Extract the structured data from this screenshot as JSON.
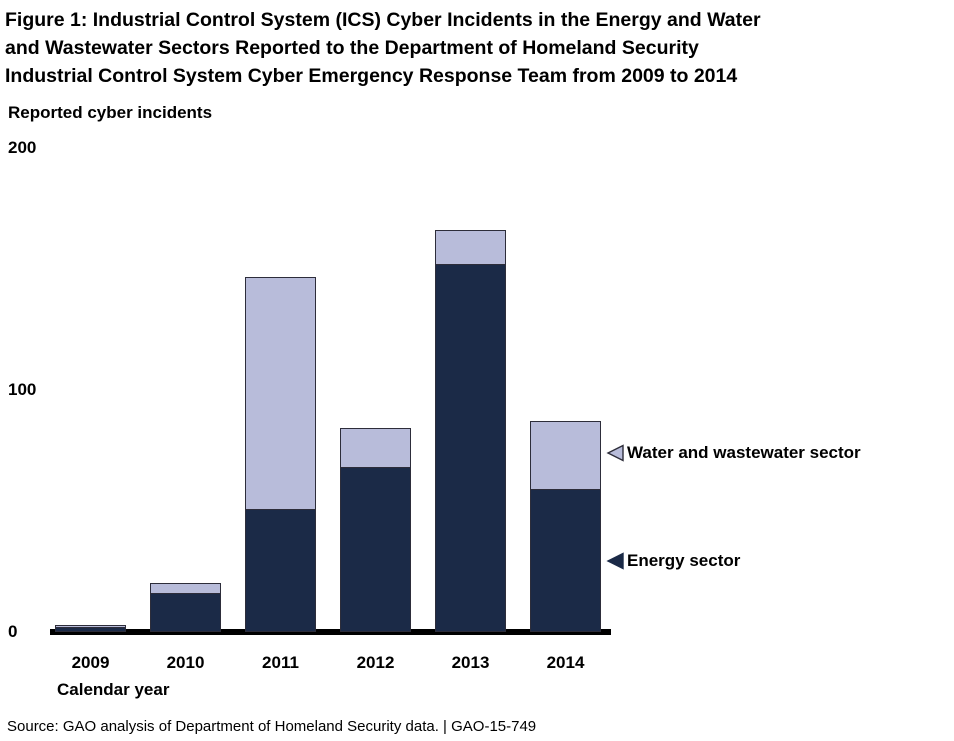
{
  "figure": {
    "title_lines": [
      "Figure 1: Industrial Control System (ICS) Cyber Incidents in the Energy and Water",
      "and Wastewater Sectors Reported to the Department of Homeland Security",
      "Industrial Control System Cyber Emergency Response Team from 2009 to 2014"
    ],
    "source_note": "Source: GAO analysis of Department of Homeland Security data.  |  GAO-15-749"
  },
  "chart_data": {
    "type": "bar",
    "stacked": true,
    "title": "Figure 1: Industrial Control System (ICS) Cyber Incidents in the Energy and Water and Wastewater Sectors Reported to the Department of Homeland Security Industrial Control System Cyber Emergency Response Team from 2009 to 2014",
    "ylabel": "Reported cyber incidents",
    "xlabel": "Calendar year",
    "categories": [
      "2009",
      "2010",
      "2011",
      "2012",
      "2013",
      "2014"
    ],
    "series": [
      {
        "name": "Energy sector",
        "color": "#1b2a47",
        "values": [
          2,
          16,
          51,
          68,
          152,
          59
        ]
      },
      {
        "name": "Water and wastewater sector",
        "color": "#b8bcda",
        "values": [
          1,
          4,
          96,
          16,
          14,
          28
        ]
      }
    ],
    "stack_totals_estimated": [
      3,
      20,
      147,
      84,
      166,
      87
    ],
    "yticks": [
      0,
      100,
      200
    ],
    "ylim": [
      0,
      200
    ],
    "grid": false,
    "legend_position": "right of 2014 bar, arrows pointing at segments",
    "legend": [
      {
        "label": "Water and wastewater sector",
        "icon": "left-triangle-outline"
      },
      {
        "label": "Energy sector",
        "icon": "left-triangle-filled"
      }
    ]
  },
  "colors": {
    "energy": "#1b2a47",
    "water": "#b8bcda",
    "bar_border": "#2d2d3a",
    "axis": "#000000",
    "text": "#000000",
    "background": "#ffffff"
  }
}
